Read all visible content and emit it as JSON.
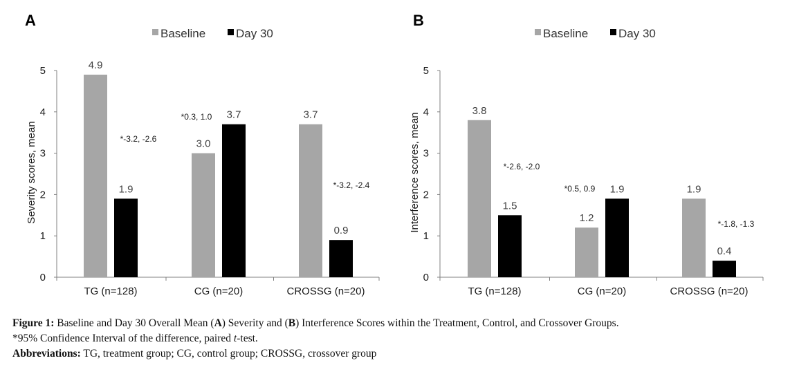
{
  "colors": {
    "baseline": "#a6a6a6",
    "day30": "#000000",
    "axis": "#808080"
  },
  "chart_data": [
    {
      "type": "bar",
      "panel": "A",
      "legend": [
        "Baseline",
        "Day 30"
      ],
      "categories": [
        "TG (n=128)",
        "CG (n=20)",
        "CROSSG (n=20)"
      ],
      "series": [
        {
          "name": "Baseline",
          "values": [
            4.9,
            3.0,
            3.7
          ],
          "labels": [
            "4.9",
            "3.0",
            "3.7"
          ]
        },
        {
          "name": "Day 30",
          "values": [
            1.9,
            3.7,
            0.9
          ],
          "labels": [
            "1.9",
            "3.7",
            "0.9"
          ]
        }
      ],
      "annotations": [
        "*-3.2, -2.6",
        "*0.3, 1.0",
        "*-3.2, -2.4"
      ],
      "ylabel": "Severity scores, mean",
      "ylim": [
        0,
        5
      ],
      "yticks": [
        "0",
        "1",
        "2",
        "3",
        "4",
        "5"
      ]
    },
    {
      "type": "bar",
      "panel": "B",
      "legend": [
        "Baseline",
        "Day 30"
      ],
      "categories": [
        "TG (n=128)",
        "CG (n=20)",
        "CROSSG (n=20)"
      ],
      "series": [
        {
          "name": "Baseline",
          "values": [
            3.8,
            1.2,
            1.9
          ],
          "labels": [
            "3.8",
            "1.2",
            "1.9"
          ]
        },
        {
          "name": "Day 30",
          "values": [
            1.5,
            1.9,
            0.4
          ],
          "labels": [
            "1.5",
            "1.9",
            "0.4"
          ]
        }
      ],
      "annotations": [
        "*-2.6, -2.0",
        "*0.5, 0.9",
        "*-1.8, -1.3"
      ],
      "ylabel": "Interference scores, mean",
      "ylim": [
        0,
        5
      ],
      "yticks": [
        "0",
        "1",
        "2",
        "3",
        "4",
        "5"
      ]
    }
  ],
  "caption": {
    "line1": [
      {
        "text": "Figure 1:",
        "bold": true
      },
      {
        "text": " Baseline and Day 30 Overall Mean (",
        "bold": false
      },
      {
        "text": "A",
        "bold": true
      },
      {
        "text": ") Severity and (",
        "bold": false
      },
      {
        "text": "B",
        "bold": true
      },
      {
        "text": ") Interference Scores within the Treatment, Control, and Crossover Groups.",
        "bold": false
      }
    ],
    "line2": [
      {
        "text": "*95% Confidence Interval of the difference, paired ",
        "italic": false
      },
      {
        "text": "t",
        "italic": true
      },
      {
        "text": "-test.",
        "italic": false
      }
    ],
    "line3_label": "Abbreviations:",
    "line3_text": " TG, treatment group; CG, control group; CROSSG, crossover group"
  }
}
